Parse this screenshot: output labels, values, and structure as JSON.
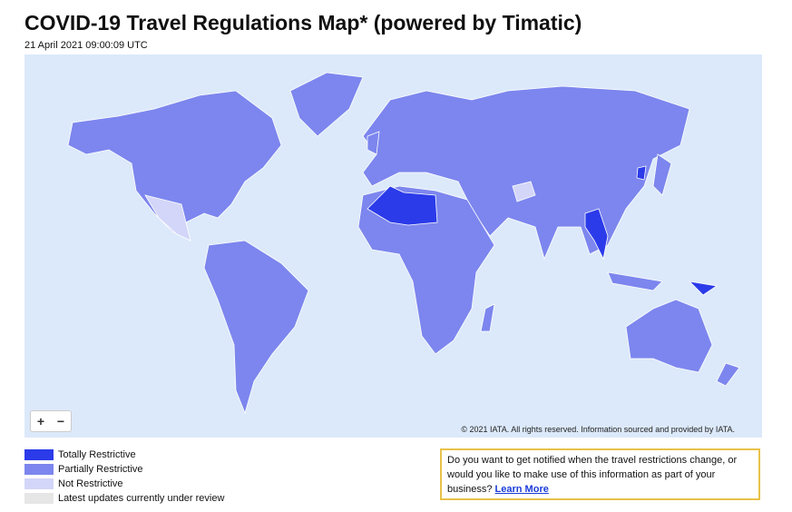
{
  "header": {
    "title": "COVID-19 Travel Regulations Map* (powered by Timatic)",
    "timestamp": "21 April 2021 09:00:09 UTC"
  },
  "map": {
    "attribution": "© 2021 IATA. All rights reserved. Information sourced and provided by IATA.",
    "zoom_in": "+",
    "zoom_out": "−"
  },
  "legend": {
    "items": [
      {
        "label": "Totally Restrictive",
        "color": "#2b3be9"
      },
      {
        "label": "Partially Restrictive",
        "color": "#7c86ee"
      },
      {
        "label": "Not Restrictive",
        "color": "#d3d6f8"
      },
      {
        "label": "Latest updates currently under review",
        "color": "#e6e6e6"
      }
    ]
  },
  "notice": {
    "text": "Do you want to get notified when the travel restrictions change, or would you like to make use of this information as part of your business?",
    "link": "Learn More"
  }
}
